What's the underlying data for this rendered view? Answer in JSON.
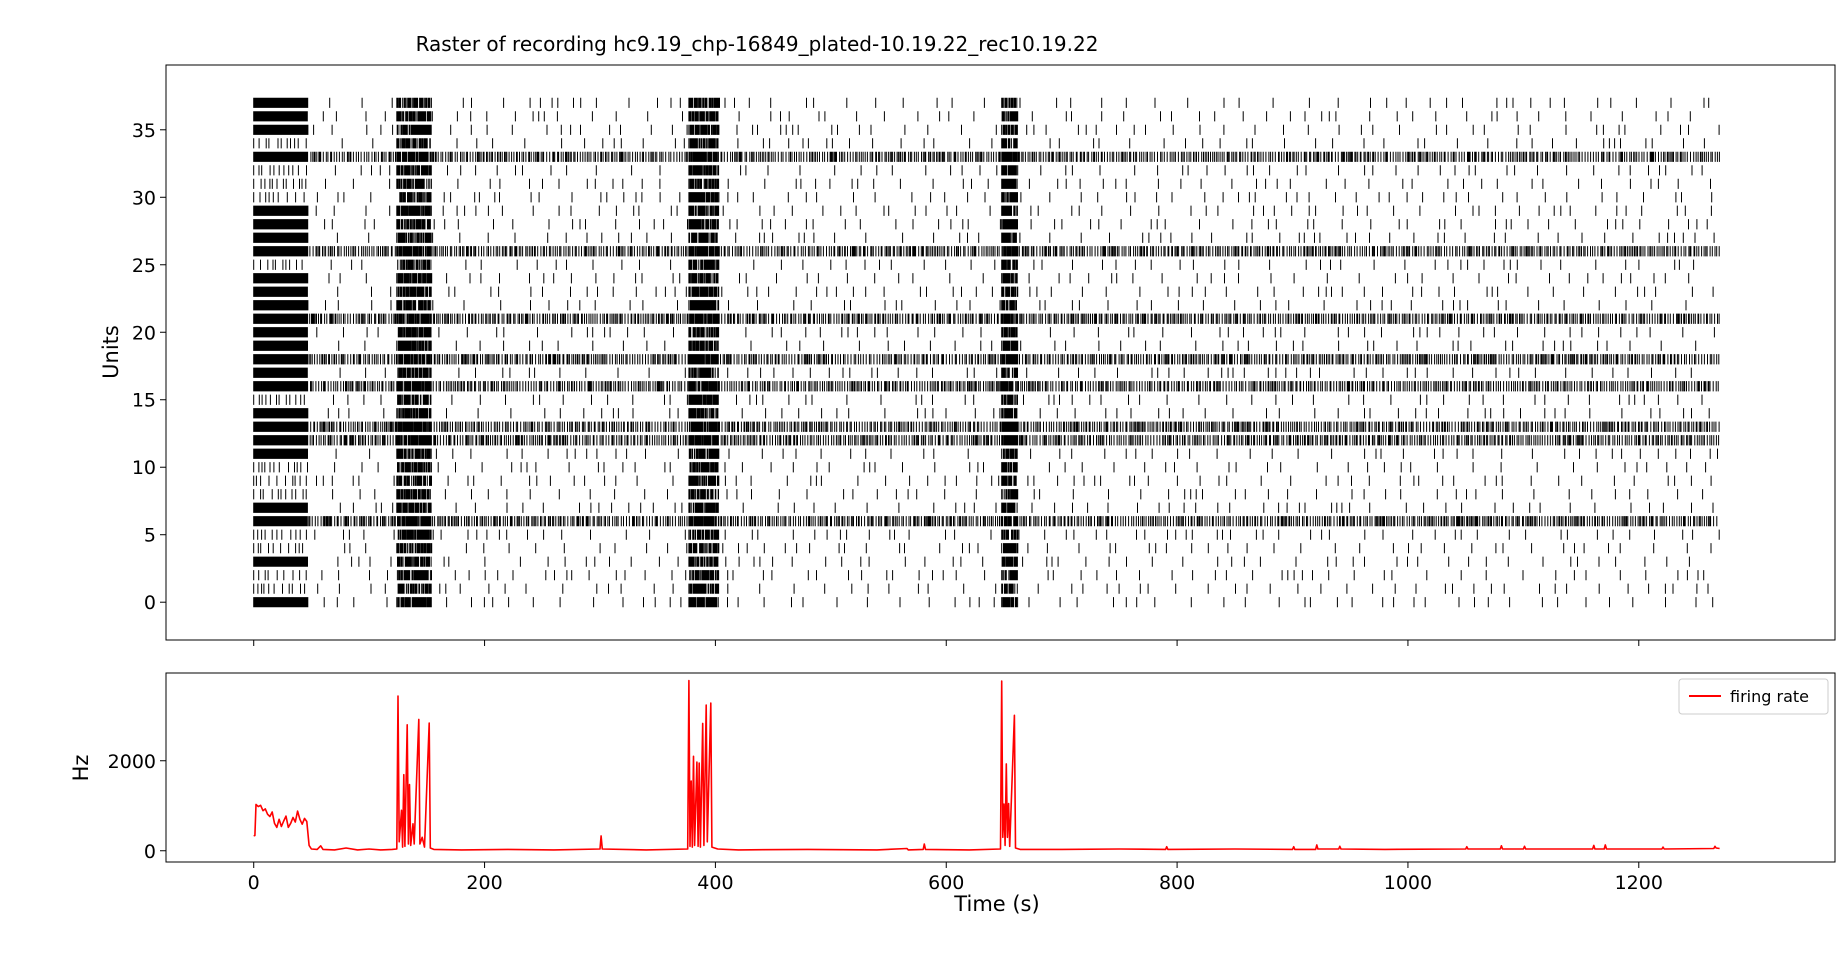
{
  "chart_data": [
    {
      "type": "raster",
      "title": "Raster of recording hc9.19_chp-16849_plated-10.19.22_rec10.19.22",
      "xlabel": "",
      "ylabel": "Units",
      "xlim": [
        -76,
        1370
      ],
      "ylim": [
        -2.8,
        39.8
      ],
      "xticks": [
        0,
        200,
        400,
        600,
        800,
        1000,
        1200
      ],
      "yticks": [
        0,
        5,
        10,
        15,
        20,
        25,
        30,
        35
      ],
      "ytick_labels": [
        "0",
        "5",
        "10",
        "15",
        "20",
        "25",
        "30",
        "35"
      ],
      "units": 38,
      "recording_end_s": 1270,
      "spike_color": "#000000",
      "network_bursts_s": [
        {
          "start": 124,
          "end": 154
        },
        {
          "start": 377,
          "end": 403
        },
        {
          "start": 648,
          "end": 662
        }
      ],
      "initial_dense_period_s": [
        0,
        47
      ],
      "dense_units": [
        6,
        12,
        13,
        16,
        18,
        21,
        26,
        33
      ],
      "sparse_units": [
        0,
        1,
        2,
        3,
        4,
        5,
        7,
        8,
        9,
        10,
        11,
        14,
        15,
        17,
        19,
        20,
        22,
        23,
        24,
        25,
        27,
        28,
        29,
        30,
        31,
        32,
        34,
        35,
        36,
        37
      ]
    },
    {
      "type": "line",
      "title": "",
      "xlabel": "Time (s)",
      "ylabel": "Hz",
      "xlim": [
        -76,
        1370
      ],
      "ylim": [
        -250,
        3950
      ],
      "xticks": [
        0,
        200,
        400,
        600,
        800,
        1000,
        1200
      ],
      "xtick_labels": [
        "0",
        "200",
        "400",
        "600",
        "800",
        "1000",
        "1200"
      ],
      "yticks": [
        0,
        2000
      ],
      "ytick_labels": [
        "0",
        "2000"
      ],
      "legend": {
        "location": "upper right",
        "entries": [
          "firing rate"
        ]
      },
      "series": [
        {
          "name": "firing rate",
          "color": "#ff0000",
          "points": [
            [
              0,
              330
            ],
            [
              1,
              340
            ],
            [
              2,
              1030
            ],
            [
              4,
              980
            ],
            [
              6,
              1010
            ],
            [
              8,
              890
            ],
            [
              10,
              930
            ],
            [
              12,
              810
            ],
            [
              14,
              760
            ],
            [
              16,
              860
            ],
            [
              18,
              610
            ],
            [
              20,
              520
            ],
            [
              22,
              700
            ],
            [
              24,
              540
            ],
            [
              26,
              660
            ],
            [
              28,
              770
            ],
            [
              30,
              520
            ],
            [
              32,
              610
            ],
            [
              34,
              740
            ],
            [
              36,
              640
            ],
            [
              38,
              880
            ],
            [
              40,
              700
            ],
            [
              42,
              590
            ],
            [
              44,
              720
            ],
            [
              46,
              650
            ],
            [
              48,
              120
            ],
            [
              50,
              40
            ],
            [
              55,
              30
            ],
            [
              58,
              110
            ],
            [
              60,
              30
            ],
            [
              70,
              20
            ],
            [
              80,
              60
            ],
            [
              90,
              20
            ],
            [
              100,
              40
            ],
            [
              110,
              20
            ],
            [
              120,
              30
            ],
            [
              124,
              40
            ],
            [
              125,
              3440
            ],
            [
              126,
              200
            ],
            [
              128,
              900
            ],
            [
              129,
              80
            ],
            [
              130,
              1690
            ],
            [
              131,
              100
            ],
            [
              133,
              2800
            ],
            [
              134,
              150
            ],
            [
              135,
              1470
            ],
            [
              136,
              120
            ],
            [
              138,
              600
            ],
            [
              139,
              150
            ],
            [
              143,
              2920
            ],
            [
              144,
              150
            ],
            [
              146,
              300
            ],
            [
              148,
              80
            ],
            [
              152,
              2840
            ],
            [
              153,
              60
            ],
            [
              156,
              30
            ],
            [
              180,
              20
            ],
            [
              220,
              30
            ],
            [
              260,
              20
            ],
            [
              300,
              40
            ],
            [
              301,
              330
            ],
            [
              302,
              40
            ],
            [
              340,
              20
            ],
            [
              376,
              40
            ],
            [
              377,
              3780
            ],
            [
              378,
              100
            ],
            [
              379,
              1550
            ],
            [
              380,
              80
            ],
            [
              381,
              2100
            ],
            [
              382,
              120
            ],
            [
              384,
              1970
            ],
            [
              385,
              100
            ],
            [
              386,
              1950
            ],
            [
              387,
              80
            ],
            [
              389,
              2830
            ],
            [
              390,
              120
            ],
            [
              392,
              3240
            ],
            [
              393,
              200
            ],
            [
              396,
              3280
            ],
            [
              397,
              80
            ],
            [
              402,
              40
            ],
            [
              420,
              20
            ],
            [
              480,
              30
            ],
            [
              540,
              20
            ],
            [
              566,
              50
            ],
            [
              567,
              20
            ],
            [
              580,
              30
            ],
            [
              581,
              150
            ],
            [
              582,
              30
            ],
            [
              620,
              20
            ],
            [
              647,
              40
            ],
            [
              648,
              3770
            ],
            [
              649,
              300
            ],
            [
              650,
              1040
            ],
            [
              651,
              120
            ],
            [
              652,
              1930
            ],
            [
              653,
              300
            ],
            [
              654,
              1050
            ],
            [
              655,
              100
            ],
            [
              659,
              3010
            ],
            [
              660,
              60
            ],
            [
              664,
              30
            ],
            [
              700,
              30
            ],
            [
              750,
              40
            ],
            [
              790,
              30
            ],
            [
              791,
              90
            ],
            [
              792,
              30
            ],
            [
              850,
              40
            ],
            [
              900,
              30
            ],
            [
              901,
              90
            ],
            [
              902,
              30
            ],
            [
              920,
              30
            ],
            [
              921,
              130
            ],
            [
              922,
              40
            ],
            [
              940,
              40
            ],
            [
              941,
              100
            ],
            [
              942,
              40
            ],
            [
              980,
              30
            ],
            [
              1050,
              40
            ],
            [
              1051,
              90
            ],
            [
              1052,
              40
            ],
            [
              1080,
              40
            ],
            [
              1081,
              110
            ],
            [
              1082,
              40
            ],
            [
              1100,
              40
            ],
            [
              1101,
              100
            ],
            [
              1102,
              40
            ],
            [
              1160,
              40
            ],
            [
              1161,
              120
            ],
            [
              1162,
              40
            ],
            [
              1170,
              40
            ],
            [
              1171,
              130
            ],
            [
              1172,
              40
            ],
            [
              1220,
              40
            ],
            [
              1221,
              80
            ],
            [
              1222,
              40
            ],
            [
              1265,
              50
            ],
            [
              1266,
              100
            ],
            [
              1267,
              60
            ],
            [
              1270,
              50
            ]
          ]
        }
      ]
    }
  ]
}
